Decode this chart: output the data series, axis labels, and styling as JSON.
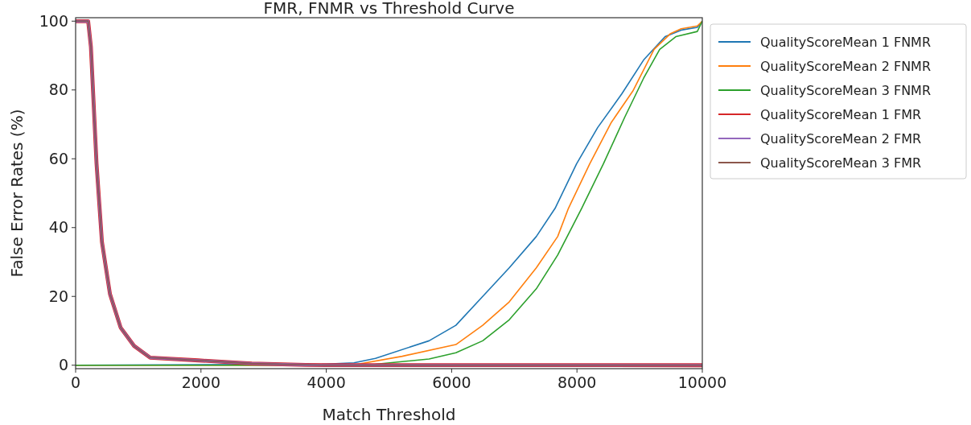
{
  "chart_data": {
    "type": "line",
    "title": "FMR, FNMR vs Threshold Curve",
    "xlabel": "Match Threshold",
    "ylabel": "False Error Rates (%)",
    "xlim": [
      0,
      10000
    ],
    "ylim": [
      -1,
      101
    ],
    "xticks": [
      0,
      2000,
      4000,
      6000,
      8000,
      10000
    ],
    "yticks": [
      0,
      20,
      40,
      60,
      80,
      100
    ],
    "grid": false,
    "legend": "top right",
    "series": [
      {
        "name": "QualityScoreMean 1 FNMR",
        "color": "#1f77b4",
        "x": [
          0,
          3928,
          4441,
          4784,
          5640,
          6068,
          6496,
          6919,
          7351,
          7651,
          7993,
          8331,
          8716,
          9063,
          9406,
          9663,
          9920,
          10000
        ],
        "values": [
          0,
          0.3,
          0.7,
          2.0,
          7.1,
          11.6,
          20,
          28.3,
          37.4,
          45.6,
          58.5,
          69.1,
          78.9,
          88.7,
          95.5,
          97.4,
          98.2,
          100
        ]
      },
      {
        "name": "QualityScoreMean 2 FNMR",
        "color": "#ff7f0e",
        "x": [
          0,
          4000,
          4500,
          5212,
          6068,
          6496,
          6919,
          7351,
          7692,
          7864,
          8203,
          8549,
          8892,
          9230,
          9487,
          9663,
          9920,
          10000
        ],
        "values": [
          0,
          0,
          0.3,
          2.6,
          6.0,
          11.6,
          18.4,
          28.3,
          37.4,
          45.6,
          58.5,
          70.6,
          79.7,
          91.8,
          96.3,
          97.8,
          98.6,
          100
        ]
      },
      {
        "name": "QualityScoreMean 3 FNMR",
        "color": "#2ca02c",
        "x": [
          0,
          4300,
          4784,
          5640,
          6068,
          6496,
          6919,
          7351,
          7692,
          8075,
          8421,
          8763,
          9063,
          9320,
          9577,
          9920,
          10000
        ],
        "values": [
          0,
          0,
          0.3,
          1.8,
          3.6,
          7.1,
          13.2,
          22.2,
          32.0,
          45.6,
          58.5,
          72.1,
          83.4,
          91.8,
          95.5,
          97.0,
          100
        ]
      },
      {
        "name": "QualityScoreMean 1 FMR",
        "color": "#d62728",
        "x": [
          0,
          200,
          244,
          334,
          420,
          548,
          719,
          933,
          1190,
          1960,
          2812,
          3671,
          4000,
          10000
        ],
        "values": [
          100,
          100,
          92.5,
          58.5,
          35.8,
          20.7,
          10.9,
          5.6,
          2.2,
          1.4,
          0.5,
          0.1,
          0,
          0
        ]
      },
      {
        "name": "QualityScoreMean 2 FMR",
        "color": "#9467bd",
        "x": [
          0,
          200,
          244,
          334,
          420,
          548,
          719,
          933,
          1190,
          1960,
          2812,
          3671,
          4000,
          10000
        ],
        "values": [
          100,
          100,
          92.5,
          58.5,
          35.8,
          20.7,
          10.9,
          5.6,
          2.2,
          1.4,
          0.5,
          0.1,
          0,
          0
        ]
      },
      {
        "name": "QualityScoreMean 3 FMR",
        "color": "#8c564b",
        "x": [
          0,
          200,
          244,
          334,
          420,
          548,
          719,
          933,
          1190,
          1960,
          2812,
          3671,
          4000,
          10000
        ],
        "values": [
          100,
          100,
          92.5,
          58.5,
          35.8,
          20.7,
          10.9,
          5.6,
          2.2,
          1.4,
          0.5,
          0.1,
          0,
          0
        ]
      }
    ]
  }
}
